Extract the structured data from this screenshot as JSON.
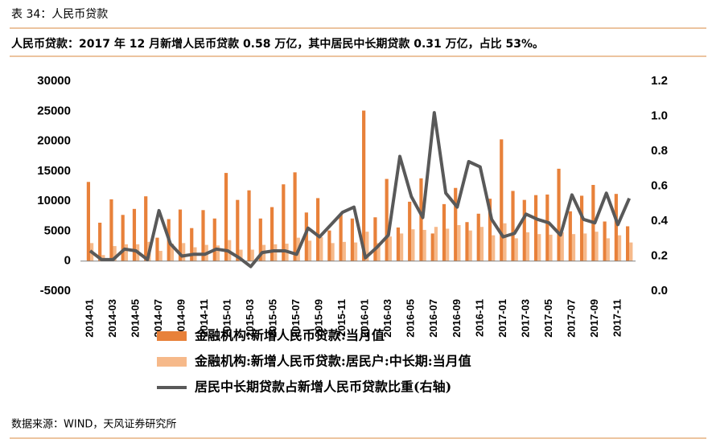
{
  "header": {
    "caption": "表 34：人民币贷款"
  },
  "footer": {
    "source": "数据来源：WIND，天风证券研究所"
  },
  "chart_data": {
    "type": "bar-line",
    "title": "人民币贷款：2017 年 12 月新增人民币贷款 0.58 万亿，其中居民中长期贷款 0.31 万亿，占比 53%。",
    "categories": [
      "2014-01",
      null,
      "2014-03",
      null,
      "2014-05",
      null,
      "2014-07",
      null,
      "2014-09",
      null,
      "2014-11",
      null,
      "2015-01",
      null,
      "2015-03",
      null,
      "2015-05",
      null,
      "2015-07",
      null,
      "2015-09",
      null,
      "2015-11",
      null,
      "2016-01",
      null,
      "2016-03",
      null,
      "2016-05",
      null,
      "2016-07",
      null,
      "2016-09",
      null,
      "2016-11",
      null,
      "2017-01",
      null,
      "2017-03",
      null,
      "2017-05",
      null,
      "2017-07",
      null,
      "2017-09",
      null,
      "2017-11",
      null
    ],
    "series": [
      {
        "name": "金融机构:新增人民币贷款:当月值",
        "color": "#e8813a",
        "values": [
          13200,
          6400,
          10300,
          7700,
          8700,
          10800,
          3900,
          7000,
          8600,
          5500,
          8500,
          7100,
          14700,
          10200,
          11800,
          7100,
          9000,
          12800,
          14800,
          8100,
          10500,
          5100,
          7900,
          7100,
          25100,
          7300,
          13700,
          5600,
          9900,
          13800,
          4600,
          9500,
          12200,
          6500,
          7900,
          10400,
          20300,
          11700,
          10200,
          11000,
          11100,
          15400,
          8300,
          10900,
          12700,
          6600,
          11200,
          5800
        ]
      },
      {
        "name": "金融机构:新增人民币贷款:居民户:中长期:当月值",
        "color": "#f6b98a",
        "values": [
          3000,
          1000,
          2500,
          2800,
          2800,
          3200,
          1700,
          2900,
          3000,
          2300,
          2700,
          2600,
          3500,
          1900,
          1900,
          2700,
          2800,
          2900,
          3900,
          3400,
          4000,
          3000,
          3200,
          3100,
          4900,
          3000,
          4100,
          4600,
          5300,
          5200,
          5700,
          5400,
          6000,
          5100,
          5700,
          4300,
          6300,
          3800,
          4800,
          4500,
          4400,
          4800,
          4500,
          4600,
          4900,
          3800,
          4300,
          3100
        ]
      },
      {
        "name": "居民中长期贷款占新增人民币贷款比重(右轴)",
        "color": "#595959",
        "axis": "y2",
        "values": [
          0.23,
          0.18,
          0.18,
          0.24,
          0.23,
          0.18,
          0.46,
          0.27,
          0.2,
          0.21,
          0.21,
          0.24,
          0.23,
          0.19,
          0.14,
          0.22,
          0.23,
          0.23,
          0.21,
          0.36,
          0.31,
          0.38,
          0.45,
          0.48,
          0.19,
          0.25,
          0.32,
          0.77,
          0.54,
          0.42,
          1.02,
          0.56,
          0.48,
          0.74,
          0.71,
          0.41,
          0.31,
          0.33,
          0.44,
          0.41,
          0.39,
          0.32,
          0.55,
          0.41,
          0.39,
          0.56,
          0.38,
          0.53
        ]
      }
    ],
    "ylim": [
      -5000,
      30000
    ],
    "yticks": [
      -5000,
      0,
      5000,
      10000,
      15000,
      20000,
      25000,
      30000
    ],
    "y2lim": [
      0,
      1.2
    ],
    "y2ticks": [
      {
        "value": 0,
        "label": "0.0"
      },
      0.2,
      0.4,
      0.6,
      0.8,
      {
        "value": 1,
        "label": "1.0"
      },
      1.2
    ],
    "grid": false,
    "legend": "bottom"
  }
}
